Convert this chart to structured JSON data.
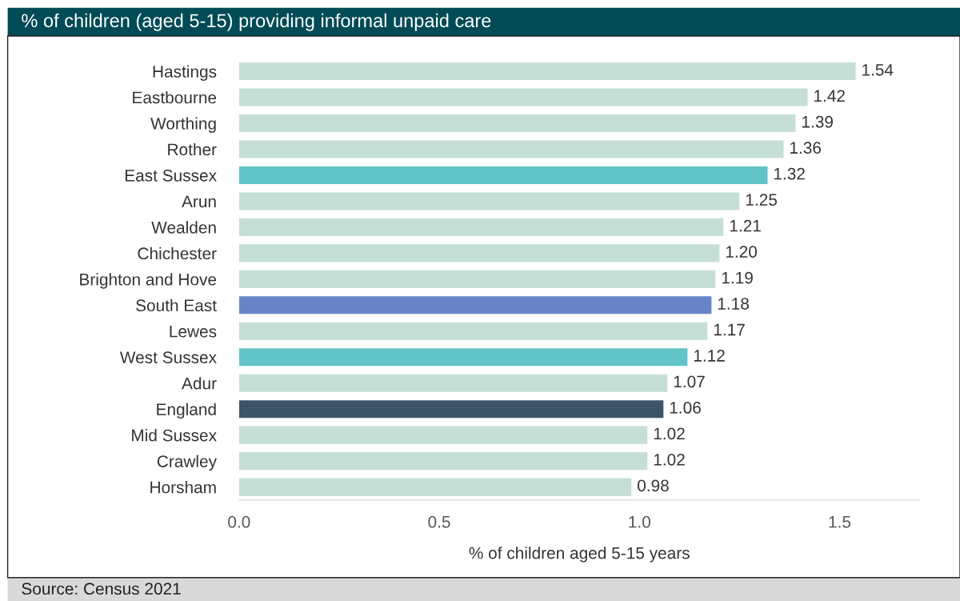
{
  "chart_data": {
    "type": "bar",
    "orientation": "horizontal",
    "title": "% of children (aged 5-15) providing informal unpaid care",
    "categories": [
      "Hastings",
      "Eastbourne",
      "Worthing",
      "Rother",
      "East Sussex",
      "Arun",
      "Wealden",
      "Chichester",
      "Brighton and Hove",
      "South East",
      "Lewes",
      "West Sussex",
      "Adur",
      "England",
      "Mid Sussex",
      "Crawley",
      "Horsham"
    ],
    "values": [
      1.54,
      1.42,
      1.39,
      1.36,
      1.32,
      1.25,
      1.21,
      1.2,
      1.19,
      1.18,
      1.17,
      1.12,
      1.07,
      1.06,
      1.02,
      1.02,
      0.98
    ],
    "colors": [
      "#c5ded6",
      "#c5ded6",
      "#c5ded6",
      "#c5ded6",
      "#62c3c8",
      "#c5ded6",
      "#c5ded6",
      "#c5ded6",
      "#c5ded6",
      "#6785c6",
      "#c5ded6",
      "#62c3c8",
      "#c5ded6",
      "#3d5468",
      "#c5ded6",
      "#c5ded6",
      "#c5ded6"
    ],
    "value_labels": [
      "1.54",
      "1.42",
      "1.39",
      "1.36",
      "1.32",
      "1.25",
      "1.21",
      "1.20",
      "1.19",
      "1.18",
      "1.17",
      "1.12",
      "1.07",
      "1.06",
      "1.02",
      "1.02",
      "0.98"
    ],
    "xlabel": "% of children aged 5-15 years",
    "xlim": [
      0,
      1.7
    ],
    "xticks": [
      {
        "value": 0,
        "label": "0.0"
      },
      0.5,
      {
        "value": 1,
        "label": "1.0"
      },
      1.5
    ],
    "grid": false,
    "legend": false,
    "annotations": [
      "Source: Census 2021"
    ]
  }
}
